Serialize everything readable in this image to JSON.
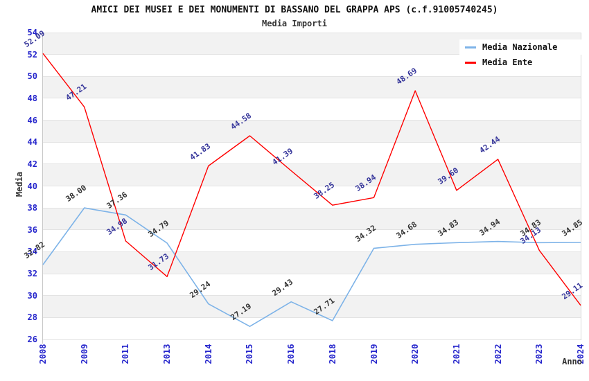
{
  "header": {
    "title": "AMICI DEI MUSEI E DEI MONUMENTI DI BASSANO DEL GRAPPA APS (c.f.91005740245)",
    "subtitle": "Media Importi"
  },
  "axes": {
    "x_title": "Anno",
    "y_title": "Media",
    "x_ticks": [
      "2008",
      "2009",
      "2011",
      "2013",
      "2014",
      "2015",
      "2016",
      "2018",
      "2019",
      "2020",
      "2021",
      "2022",
      "2023",
      "2024"
    ],
    "y_ticks": [
      54,
      52,
      50,
      48,
      46,
      44,
      42,
      40,
      38,
      36,
      34,
      32,
      30,
      28,
      26
    ]
  },
  "legend": {
    "items": [
      {
        "label": "Media Nazionale",
        "color": "#7db3e8"
      },
      {
        "label": "Media Ente",
        "color": "#ff0000"
      }
    ]
  },
  "chart_data": {
    "type": "line",
    "title": "AMICI DEI MUSEI E DEI MONUMENTI DI BASSANO DEL GRAPPA APS (c.f.91005740245)",
    "subtitle": "Media Importi",
    "xlabel": "Anno",
    "ylabel": "Media",
    "x": [
      2008,
      2009,
      2011,
      2013,
      2014,
      2015,
      2016,
      2018,
      2019,
      2020,
      2021,
      2022,
      2023,
      2024
    ],
    "ylim": [
      26,
      54
    ],
    "ytick_step": 2,
    "grid": "horizontal",
    "band_colors": [
      "#ffffff",
      "#f2f2f2"
    ],
    "legend_position": "top-right",
    "series": [
      {
        "name": "Media Nazionale",
        "color": "#7db3e8",
        "label_color": "#333333",
        "values": [
          32.82,
          38.0,
          37.36,
          34.79,
          29.24,
          27.19,
          29.43,
          27.71,
          34.32,
          34.68,
          34.83,
          34.94,
          34.83,
          34.85
        ],
        "labels": [
          "32.82",
          "38.00",
          "37.36",
          "34.79",
          "29.24",
          "27.19",
          "29.43",
          "27.71",
          "34.32",
          "34.68",
          "34.83",
          "34.94",
          "34.83",
          "34.85"
        ]
      },
      {
        "name": "Media Ente",
        "color": "#ff0000",
        "label_color": "#333399",
        "values": [
          52.09,
          47.21,
          34.98,
          31.73,
          41.83,
          44.58,
          41.39,
          38.25,
          38.94,
          48.69,
          39.6,
          42.44,
          34.13,
          29.11
        ],
        "labels": [
          "52.09",
          "47.21",
          "34.98",
          "31.73",
          "41.83",
          "44.58",
          "41.39",
          "38.25",
          "38.94",
          "48.69",
          "39.60",
          "42.44",
          "34.13",
          "29.11"
        ]
      }
    ]
  },
  "colors": {
    "tick_label": "#2626cc",
    "grid_line": "#e3e3e3",
    "axis_line": "#c9c9c9",
    "band_gray": "#f2f2f2",
    "band_white": "#ffffff",
    "title": "#111111",
    "subtitle": "#333333",
    "axis_title": "#333333"
  }
}
